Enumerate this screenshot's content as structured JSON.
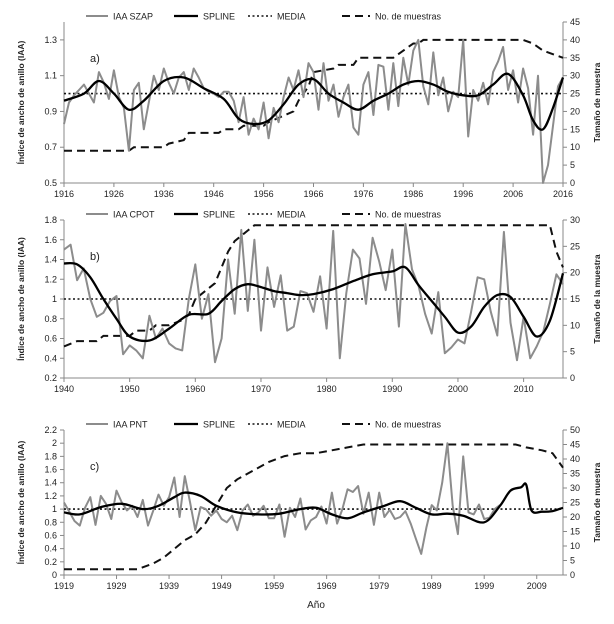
{
  "figure": {
    "x_axis_label": "Año"
  },
  "chart_data": [
    {
      "type": "line",
      "panel_label": "a)",
      "ylabel_left": "Índice de ancho de anillo (IAA)",
      "ylabel_right": "Tamaño de muestra",
      "legend": [
        "IAA SZAP",
        "SPLINE",
        "MEDIA",
        "No. de muestras"
      ],
      "xlim": [
        1916,
        2016
      ],
      "x_ticks": [
        1916,
        1926,
        1936,
        1946,
        1956,
        1966,
        1976,
        1986,
        1996,
        2006,
        2016
      ],
      "ylim": [
        0.5,
        1.4
      ],
      "y_ticks": [
        0.5,
        0.7,
        0.9,
        1.1,
        1.3
      ],
      "y2lim": [
        0,
        45
      ],
      "y2_ticks": [
        0,
        5,
        10,
        15,
        20,
        25,
        30,
        35,
        40,
        45
      ],
      "media": 1.0,
      "iaa": {
        "x_start": 1916,
        "values": [
          0.83,
          0.95,
          0.99,
          1.02,
          1.05,
          1.0,
          0.95,
          1.12,
          1.06,
          0.97,
          1.13,
          0.98,
          0.92,
          0.68,
          1.02,
          1.06,
          0.8,
          0.95,
          1.1,
          1.02,
          1.14,
          1.06,
          1.0,
          1.09,
          1.12,
          1.02,
          1.14,
          1.09,
          1.03,
          1.01,
          1.0,
          0.98,
          1.01,
          1.01,
          0.96,
          0.84,
          0.98,
          0.77,
          0.86,
          0.8,
          0.95,
          0.75,
          0.92,
          0.84,
          0.98,
          1.09,
          1.02,
          1.13,
          0.98,
          1.17,
          1.12,
          0.91,
          1.17,
          0.96,
          1.05,
          0.87,
          0.98,
          1.05,
          0.81,
          0.77,
          1.05,
          1.12,
          0.88,
          1.16,
          1.15,
          0.91,
          1.17,
          0.93,
          1.2,
          1.05,
          1.24,
          1.3,
          1.04,
          0.94,
          1.23,
          0.99,
          1.09,
          0.9,
          1.01,
          0.98,
          1.3,
          0.76,
          1.02,
          0.96,
          1.06,
          0.94,
          1.12,
          1.18,
          1.26,
          1.02,
          1.13,
          0.95,
          1.14,
          1.03,
          0.77,
          1.1,
          0.5,
          0.6,
          0.82,
          1.04,
          1.09
        ]
      },
      "spline": {
        "x": [
          1916,
          1920,
          1923,
          1926,
          1929,
          1932,
          1936,
          1940,
          1944,
          1948,
          1951,
          1954,
          1957,
          1960,
          1963,
          1966,
          1969,
          1972,
          1975,
          1978,
          1981,
          1984,
          1987,
          1990,
          1993,
          1996,
          1999,
          2002,
          2005,
          2008,
          2010,
          2012,
          2014,
          2016
        ],
        "values": [
          0.96,
          1.0,
          1.07,
          1.0,
          0.91,
          0.96,
          1.07,
          1.09,
          1.03,
          0.97,
          0.86,
          0.83,
          0.85,
          0.94,
          1.05,
          1.08,
          1.0,
          0.95,
          0.91,
          0.96,
          1.0,
          1.05,
          1.07,
          1.05,
          1.01,
          0.99,
          0.99,
          1.05,
          1.11,
          0.99,
          0.85,
          0.8,
          0.92,
          1.09
        ]
      },
      "samples": {
        "x": [
          1916,
          1929,
          1930,
          1936,
          1937,
          1940,
          1941,
          1947,
          1948,
          1951,
          1952,
          1956,
          1957,
          1962,
          1963,
          1965,
          1966,
          1970,
          1971,
          1974,
          1975,
          1982,
          1983,
          1985,
          1986,
          1987,
          1988,
          2006,
          2008,
          2010,
          2012,
          2016
        ],
        "values": [
          9,
          9,
          10,
          10,
          11,
          12,
          14,
          14,
          15,
          15,
          16,
          16,
          17,
          20,
          23,
          27,
          31,
          32,
          33,
          33,
          35,
          35,
          36,
          38,
          39,
          39,
          40,
          40,
          40,
          39,
          37,
          35
        ]
      }
    },
    {
      "type": "line",
      "panel_label": "b)",
      "ylabel_left": "Índice de ancho de anillo (IAA)",
      "ylabel_right": "Tamaño de la muestra",
      "legend": [
        "IAA CPOT",
        "SPLINE",
        "MEDIA",
        "No. de muestras"
      ],
      "xlim": [
        1940,
        2016
      ],
      "x_ticks": [
        1940,
        1950,
        1960,
        1970,
        1980,
        1990,
        2000,
        2010
      ],
      "ylim": [
        0.2,
        1.8
      ],
      "y_ticks": [
        0.2,
        0.4,
        0.6,
        0.8,
        1.0,
        1.2,
        1.4,
        1.6,
        1.8
      ],
      "y_tick_labels": [
        "0.2",
        "0.4",
        "0.6",
        "0.8",
        "1",
        "1.2",
        "1.4",
        "1.6",
        "1.8"
      ],
      "y2lim": [
        0,
        30
      ],
      "y2_ticks": [
        0,
        5,
        10,
        15,
        20,
        25,
        30
      ],
      "media": 1.0,
      "iaa": {
        "x_start": 1940,
        "values": [
          1.5,
          1.55,
          1.19,
          1.31,
          1.0,
          0.82,
          0.86,
          0.98,
          1.03,
          0.44,
          0.53,
          0.48,
          0.4,
          0.83,
          0.6,
          0.7,
          0.55,
          0.5,
          0.48,
          1.0,
          1.35,
          0.8,
          1.05,
          0.36,
          0.6,
          1.4,
          0.85,
          1.7,
          0.88,
          1.6,
          0.68,
          1.32,
          0.92,
          1.24,
          0.68,
          0.72,
          1.08,
          1.06,
          0.87,
          1.23,
          0.7,
          1.69,
          0.4,
          1.06,
          1.5,
          1.41,
          0.95,
          1.62,
          1.38,
          1.09,
          1.5,
          0.72,
          1.76,
          1.3,
          1.13,
          0.85,
          0.65,
          1.07,
          0.45,
          0.51,
          0.59,
          0.55,
          0.87,
          1.22,
          1.2,
          0.87,
          0.63,
          1.68,
          0.76,
          0.38,
          0.82,
          0.4,
          0.52,
          0.67,
          0.95,
          1.25,
          1.15
        ]
      },
      "spline": {
        "x": [
          1940,
          1942,
          1944,
          1946,
          1948,
          1950,
          1953,
          1956,
          1959,
          1962,
          1964,
          1966,
          1968,
          1970,
          1972,
          1974,
          1976,
          1978,
          1981,
          1984,
          1987,
          1990,
          1992,
          1994,
          1996,
          1998,
          2000,
          2002,
          2004,
          2006,
          2008,
          2010,
          2012,
          2014,
          2016
        ],
        "values": [
          1.36,
          1.35,
          1.22,
          1.0,
          0.8,
          0.62,
          0.58,
          0.7,
          0.84,
          0.85,
          0.98,
          1.1,
          1.15,
          1.12,
          1.08,
          1.06,
          1.04,
          1.05,
          1.1,
          1.18,
          1.25,
          1.28,
          1.32,
          1.14,
          0.98,
          0.82,
          0.66,
          0.72,
          0.92,
          1.04,
          1.02,
          0.82,
          0.62,
          0.78,
          1.26
        ]
      },
      "samples": {
        "x": [
          1940,
          1942,
          1945,
          1946,
          1950,
          1951,
          1953,
          1954,
          1956,
          1958,
          1959,
          1960,
          1962,
          1963,
          1965,
          1966,
          1968,
          1969,
          2014,
          2015,
          2016
        ],
        "values": [
          6,
          7,
          7,
          8,
          8,
          9,
          9,
          10,
          10,
          11,
          12,
          15,
          17,
          18,
          24,
          26,
          28,
          29,
          29,
          24,
          21
        ]
      }
    },
    {
      "type": "line",
      "panel_label": "c)",
      "ylabel_left": "Índice de ancho de anillo (IAA)",
      "ylabel_right": "Tamaño de muestra",
      "legend": [
        "IAA PNT",
        "SPLINE",
        "MEDIA",
        "No. de muestras"
      ],
      "xlim": [
        1919,
        2014
      ],
      "x_ticks": [
        1919,
        1929,
        1939,
        1949,
        1959,
        1969,
        1979,
        1989,
        1999,
        2009
      ],
      "ylim": [
        0,
        2.2
      ],
      "y_ticks": [
        0,
        0.2,
        0.4,
        0.6,
        0.8,
        1.0,
        1.2,
        1.4,
        1.6,
        1.8,
        2.0,
        2.2
      ],
      "y_tick_labels": [
        "0",
        "0.2",
        "0.4",
        "0.6",
        "0.8",
        "1",
        "1.2",
        "1.4",
        "1.6",
        "1.8",
        "2",
        "2.2"
      ],
      "y2lim": [
        0,
        50
      ],
      "y2_ticks": [
        0,
        5,
        10,
        15,
        20,
        25,
        30,
        35,
        40,
        45,
        50
      ],
      "media": 1.0,
      "iaa": {
        "x_start": 1919,
        "values": [
          1.1,
          0.96,
          0.82,
          0.75,
          1.02,
          1.18,
          0.76,
          1.2,
          1.08,
          0.85,
          1.28,
          1.1,
          0.98,
          1.05,
          0.88,
          1.14,
          0.75,
          0.98,
          1.22,
          1.05,
          1.18,
          1.48,
          0.88,
          1.5,
          1.1,
          0.68,
          1.03,
          1.0,
          0.9,
          0.98,
          0.85,
          0.8,
          0.9,
          0.68,
          0.98,
          1.07,
          0.9,
          0.95,
          1.05,
          0.86,
          0.86,
          1.07,
          0.58,
          1.02,
          0.88,
          1.16,
          0.69,
          0.83,
          0.88,
          1.04,
          0.78,
          1.25,
          0.78,
          1.0,
          1.3,
          1.26,
          1.35,
          0.93,
          1.25,
          0.76,
          1.25,
          0.88,
          0.99,
          0.85,
          0.88,
          0.97,
          0.78,
          0.55,
          0.32,
          0.72,
          1.06,
          0.98,
          1.4,
          2.0,
          1.05,
          0.62,
          1.8,
          0.95,
          0.92,
          1.07,
          0.85,
          0.87,
          1.0,
          1.06
        ]
      },
      "spline": {
        "x": [
          1919,
          1922,
          1926,
          1930,
          1934,
          1937,
          1940,
          1942,
          1945,
          1948,
          1952,
          1956,
          1960,
          1964,
          1967,
          1970,
          1973,
          1976,
          1980,
          1983,
          1986,
          1989,
          1992,
          1995,
          1999,
          2002,
          2004,
          2006,
          2007,
          2008,
          2010,
          2012,
          2014
        ],
        "values": [
          0.95,
          0.92,
          1.03,
          1.08,
          1.0,
          1.05,
          1.18,
          1.25,
          1.2,
          1.05,
          0.95,
          0.92,
          0.93,
          1.0,
          1.02,
          0.92,
          0.86,
          0.95,
          1.05,
          1.12,
          1.02,
          0.92,
          0.93,
          0.9,
          0.8,
          1.05,
          1.28,
          1.33,
          1.37,
          0.98,
          0.96,
          0.97,
          1.02
        ]
      },
      "samples": {
        "x": [
          1919,
          1933,
          1936,
          1938,
          1940,
          1942,
          1944,
          1946,
          1948,
          1950,
          1952,
          1955,
          1958,
          1961,
          1964,
          1967,
          1970,
          1973,
          1976,
          2005,
          2007,
          2010,
          2012,
          2014
        ],
        "values": [
          2,
          2,
          4,
          6,
          9,
          12,
          14,
          18,
          24,
          30,
          33,
          36,
          39,
          41,
          42,
          42,
          43,
          44,
          45,
          45,
          44,
          43,
          42,
          37
        ]
      }
    }
  ]
}
